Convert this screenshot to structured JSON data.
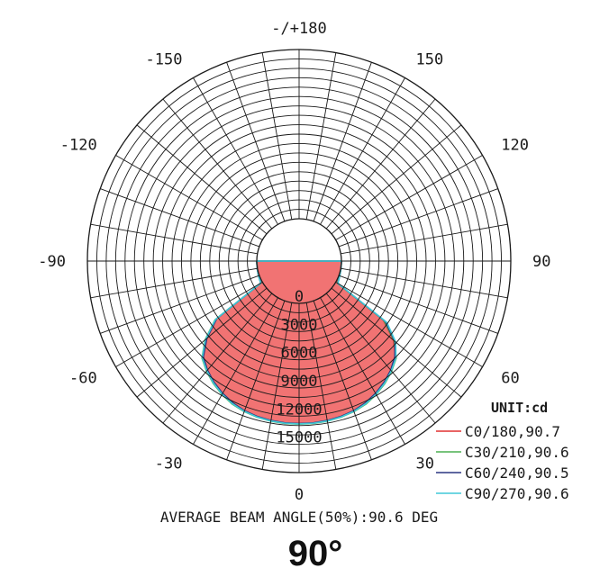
{
  "chart_data": {
    "type": "polar",
    "unit_label": "UNIT:cd",
    "angle_labels": [
      "-/+180",
      "150",
      "120",
      "90",
      "60",
      "30",
      "0",
      "-30",
      "-60",
      "-90",
      "-120",
      "-150"
    ],
    "angle_ticks": [
      180,
      150,
      120,
      90,
      60,
      30,
      0,
      -30,
      -60,
      -90,
      -120,
      -150
    ],
    "radial_labels": [
      "0",
      "3000",
      "6000",
      "9000",
      "12000",
      "15000"
    ],
    "radial_ticks": [
      0,
      3000,
      6000,
      9000,
      12000,
      15000
    ],
    "rmax": 18000,
    "series": [
      {
        "name": "C0/180,90.7",
        "color": "#e03030",
        "fill": true,
        "angles": [
          -90,
          -80,
          -70,
          -60,
          -55,
          -50,
          -45,
          -40,
          -35,
          -30,
          -25,
          -20,
          -15,
          -10,
          -5,
          0,
          5,
          10,
          15,
          20,
          25,
          30,
          35,
          40,
          45,
          50,
          55,
          60,
          70,
          80,
          90
        ],
        "values": [
          0,
          20,
          100,
          200,
          6280,
          8400,
          10000,
          10700,
          11300,
          11800,
          12200,
          12480,
          12650,
          12750,
          12800,
          12800,
          12800,
          12750,
          12650,
          12480,
          12200,
          11800,
          11300,
          10700,
          10000,
          8600,
          6400,
          200,
          100,
          20,
          0
        ]
      },
      {
        "name": "C30/210,90.6",
        "color": "#4caf50",
        "fill": false,
        "angles": [
          -90,
          -80,
          -70,
          -60,
          -55,
          -50,
          -45,
          -40,
          -35,
          -30,
          -25,
          -20,
          -15,
          -10,
          -5,
          0,
          5,
          10,
          15,
          20,
          25,
          30,
          35,
          40,
          45,
          50,
          55,
          60,
          70,
          80,
          90
        ],
        "values": [
          0,
          20,
          100,
          200,
          6400,
          8550,
          10100,
          10800,
          11400,
          11900,
          12300,
          12550,
          12700,
          12800,
          12850,
          12850,
          12850,
          12800,
          12700,
          12550,
          12300,
          11900,
          11400,
          10800,
          10100,
          8700,
          6500,
          220,
          100,
          20,
          0
        ]
      },
      {
        "name": "C60/240,90.5",
        "color": "#2a3580",
        "fill": false,
        "angles": [
          -90,
          -80,
          -70,
          -60,
          -55,
          -50,
          -45,
          -40,
          -35,
          -30,
          -25,
          -20,
          -15,
          -10,
          -5,
          0,
          5,
          10,
          15,
          20,
          25,
          30,
          35,
          40,
          45,
          50,
          55,
          60,
          70,
          80,
          90
        ],
        "values": [
          0,
          20,
          100,
          200,
          6200,
          8300,
          9900,
          10650,
          11250,
          11750,
          12150,
          12450,
          12620,
          12720,
          12780,
          12780,
          12780,
          12720,
          12620,
          12450,
          12150,
          11750,
          11250,
          10650,
          9900,
          8800,
          6700,
          250,
          100,
          20,
          0
        ]
      },
      {
        "name": "C90/270,90.6",
        "color": "#40c8d8",
        "fill": false,
        "angles": [
          -90,
          -80,
          -70,
          -60,
          -55,
          -50,
          -45,
          -40,
          -35,
          -30,
          -25,
          -20,
          -15,
          -10,
          -5,
          0,
          5,
          10,
          15,
          20,
          25,
          30,
          35,
          40,
          45,
          50,
          55,
          60,
          70,
          80,
          90
        ],
        "values": [
          0,
          20,
          100,
          200,
          6350,
          8500,
          10050,
          10750,
          11350,
          11850,
          12250,
          12520,
          12680,
          12780,
          12820,
          12820,
          12820,
          12780,
          12680,
          12520,
          12250,
          11850,
          11350,
          10750,
          10050,
          8900,
          6900,
          260,
          100,
          20,
          0
        ]
      }
    ],
    "footer": "AVERAGE BEAM ANGLE(50%):90.6 DEG",
    "beam_angle_title": "90°"
  }
}
